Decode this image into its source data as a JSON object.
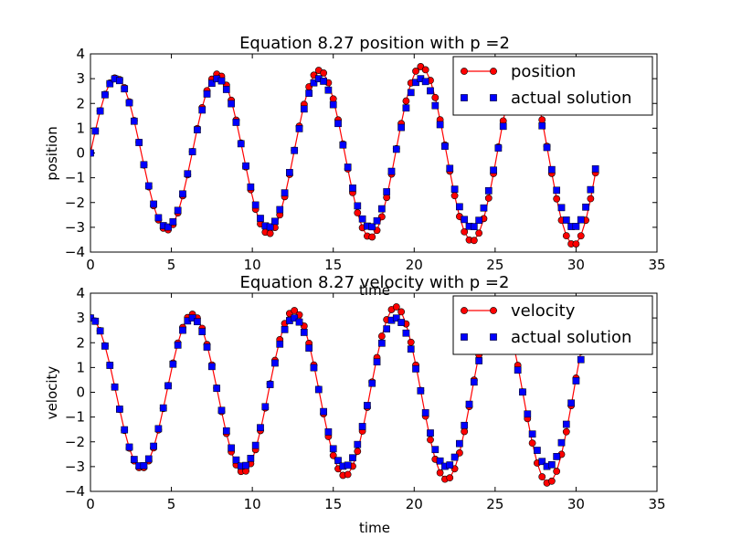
{
  "chart_data": [
    {
      "type": "line",
      "title": "Equation 8.27 position with  p =2",
      "xlabel": "time",
      "ylabel": "position",
      "xlim": [
        0,
        35
      ],
      "ylim": [
        -4,
        4
      ],
      "xticks": [
        "0",
        "5",
        "10",
        "15",
        "20",
        "25",
        "30",
        "35"
      ],
      "yticks": [
        "4",
        "3",
        "2",
        "1",
        "0",
        "−1",
        "−2",
        "−3",
        "−4"
      ],
      "legend_position": "top-right",
      "grid": false,
      "series": [
        {
          "name": "position",
          "style": "red line with circle markers",
          "color": "#ff0000",
          "amplitude": 3.0,
          "amplitude_growth_per_cycle": 0.05,
          "period": 6.2832,
          "phase": 0,
          "t_start": 0,
          "t_end": 31.2,
          "dt": 0.3,
          "function": "sin"
        },
        {
          "name": "actual solution",
          "style": "blue square markers",
          "color": "#0000ff",
          "amplitude": 3.0,
          "period": 6.2832,
          "phase": 0,
          "t_start": 0,
          "t_end": 31.2,
          "dt": 0.3,
          "function": "sin"
        }
      ]
    },
    {
      "type": "line",
      "title": "Equation 8.27 velocity with  p =2",
      "xlabel": "time",
      "ylabel": "velocity",
      "xlim": [
        0,
        35
      ],
      "ylim": [
        -4,
        4
      ],
      "xticks": [
        "0",
        "5",
        "10",
        "15",
        "20",
        "25",
        "30",
        "35"
      ],
      "yticks": [
        "4",
        "3",
        "2",
        "1",
        "0",
        "−1",
        "−2",
        "−3",
        "−4"
      ],
      "legend_position": "top-right",
      "grid": false,
      "series": [
        {
          "name": "velocity",
          "style": "red line with circle markers",
          "color": "#ff0000",
          "amplitude": 3.0,
          "amplitude_growth_per_cycle": 0.05,
          "period": 6.2832,
          "phase": 0,
          "t_start": 0,
          "t_end": 30.3,
          "dt": 0.3,
          "function": "cos"
        },
        {
          "name": "actual solution",
          "style": "blue square markers",
          "color": "#0000ff",
          "amplitude": 3.0,
          "period": 6.2832,
          "phase": 0,
          "t_start": 0,
          "t_end": 30.3,
          "dt": 0.3,
          "function": "cos"
        }
      ]
    }
  ]
}
